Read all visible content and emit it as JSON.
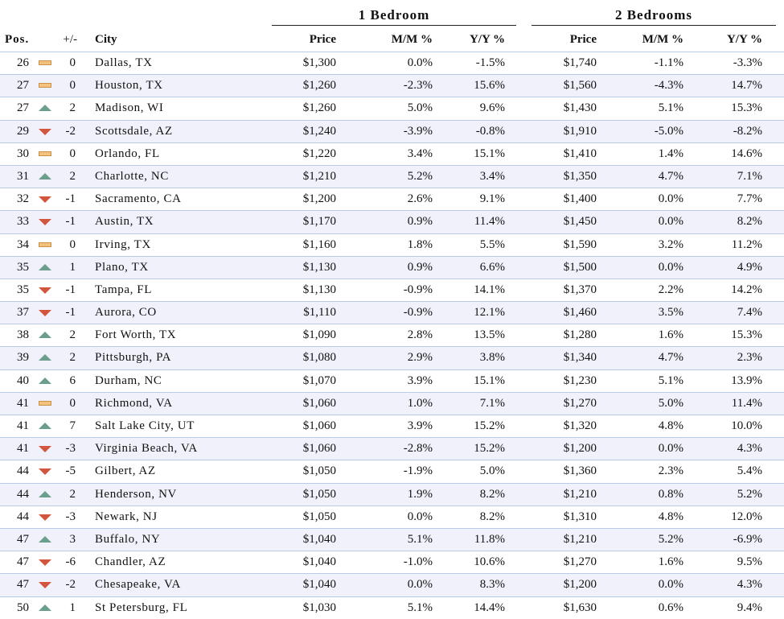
{
  "groups": {
    "one_bed": "1 Bedroom",
    "two_bed": "2 Bedrooms"
  },
  "headers": {
    "pos": "Pos.",
    "change": "+/-",
    "city": "City",
    "price": "Price",
    "mm": "M/M %",
    "yy": "Y/Y %"
  },
  "colors": {
    "up": "#6b9e8c",
    "down": "#d2553d",
    "flat": "#f3c27f",
    "row_alt": "#f1f1fb",
    "row_border": "#b9cbe8"
  },
  "chart_data": {
    "type": "table",
    "columns": [
      "Pos.",
      "+/-",
      "City",
      "1 Bedroom Price",
      "1 Bedroom M/M %",
      "1 Bedroom Y/Y %",
      "2 Bedrooms Price",
      "2 Bedrooms M/M %",
      "2 Bedrooms Y/Y %"
    ],
    "rows": [
      {
        "pos": "26",
        "trend": "flat",
        "change": "0",
        "city": "Dallas, TX",
        "p1": "$1,300",
        "m1": "0.0%",
        "y1": "-1.5%",
        "p2": "$1,740",
        "m2": "-1.1%",
        "y2": "-3.3%"
      },
      {
        "pos": "27",
        "trend": "flat",
        "change": "0",
        "city": "Houston, TX",
        "p1": "$1,260",
        "m1": "-2.3%",
        "y1": "15.6%",
        "p2": "$1,560",
        "m2": "-4.3%",
        "y2": "14.7%"
      },
      {
        "pos": "27",
        "trend": "up",
        "change": "2",
        "city": "Madison, WI",
        "p1": "$1,260",
        "m1": "5.0%",
        "y1": "9.6%",
        "p2": "$1,430",
        "m2": "5.1%",
        "y2": "15.3%"
      },
      {
        "pos": "29",
        "trend": "down",
        "change": "-2",
        "city": "Scottsdale, AZ",
        "p1": "$1,240",
        "m1": "-3.9%",
        "y1": "-0.8%",
        "p2": "$1,910",
        "m2": "-5.0%",
        "y2": "-8.2%"
      },
      {
        "pos": "30",
        "trend": "flat",
        "change": "0",
        "city": "Orlando, FL",
        "p1": "$1,220",
        "m1": "3.4%",
        "y1": "15.1%",
        "p2": "$1,410",
        "m2": "1.4%",
        "y2": "14.6%"
      },
      {
        "pos": "31",
        "trend": "up",
        "change": "2",
        "city": "Charlotte, NC",
        "p1": "$1,210",
        "m1": "5.2%",
        "y1": "3.4%",
        "p2": "$1,350",
        "m2": "4.7%",
        "y2": "7.1%"
      },
      {
        "pos": "32",
        "trend": "down",
        "change": "-1",
        "city": "Sacramento, CA",
        "p1": "$1,200",
        "m1": "2.6%",
        "y1": "9.1%",
        "p2": "$1,400",
        "m2": "0.0%",
        "y2": "7.7%"
      },
      {
        "pos": "33",
        "trend": "down",
        "change": "-1",
        "city": "Austin, TX",
        "p1": "$1,170",
        "m1": "0.9%",
        "y1": "11.4%",
        "p2": "$1,450",
        "m2": "0.0%",
        "y2": "8.2%"
      },
      {
        "pos": "34",
        "trend": "flat",
        "change": "0",
        "city": "Irving, TX",
        "p1": "$1,160",
        "m1": "1.8%",
        "y1": "5.5%",
        "p2": "$1,590",
        "m2": "3.2%",
        "y2": "11.2%"
      },
      {
        "pos": "35",
        "trend": "up",
        "change": "1",
        "city": "Plano, TX",
        "p1": "$1,130",
        "m1": "0.9%",
        "y1": "6.6%",
        "p2": "$1,500",
        "m2": "0.0%",
        "y2": "4.9%"
      },
      {
        "pos": "35",
        "trend": "down",
        "change": "-1",
        "city": "Tampa, FL",
        "p1": "$1,130",
        "m1": "-0.9%",
        "y1": "14.1%",
        "p2": "$1,370",
        "m2": "2.2%",
        "y2": "14.2%"
      },
      {
        "pos": "37",
        "trend": "down",
        "change": "-1",
        "city": "Aurora, CO",
        "p1": "$1,110",
        "m1": "-0.9%",
        "y1": "12.1%",
        "p2": "$1,460",
        "m2": "3.5%",
        "y2": "7.4%"
      },
      {
        "pos": "38",
        "trend": "up",
        "change": "2",
        "city": "Fort Worth, TX",
        "p1": "$1,090",
        "m1": "2.8%",
        "y1": "13.5%",
        "p2": "$1,280",
        "m2": "1.6%",
        "y2": "15.3%"
      },
      {
        "pos": "39",
        "trend": "up",
        "change": "2",
        "city": "Pittsburgh, PA",
        "p1": "$1,080",
        "m1": "2.9%",
        "y1": "3.8%",
        "p2": "$1,340",
        "m2": "4.7%",
        "y2": "2.3%"
      },
      {
        "pos": "40",
        "trend": "up",
        "change": "6",
        "city": "Durham, NC",
        "p1": "$1,070",
        "m1": "3.9%",
        "y1": "15.1%",
        "p2": "$1,230",
        "m2": "5.1%",
        "y2": "13.9%"
      },
      {
        "pos": "41",
        "trend": "flat",
        "change": "0",
        "city": "Richmond, VA",
        "p1": "$1,060",
        "m1": "1.0%",
        "y1": "7.1%",
        "p2": "$1,270",
        "m2": "5.0%",
        "y2": "11.4%"
      },
      {
        "pos": "41",
        "trend": "up",
        "change": "7",
        "city": "Salt Lake City, UT",
        "p1": "$1,060",
        "m1": "3.9%",
        "y1": "15.2%",
        "p2": "$1,320",
        "m2": "4.8%",
        "y2": "10.0%"
      },
      {
        "pos": "41",
        "trend": "down",
        "change": "-3",
        "city": "Virginia Beach, VA",
        "p1": "$1,060",
        "m1": "-2.8%",
        "y1": "15.2%",
        "p2": "$1,200",
        "m2": "0.0%",
        "y2": "4.3%"
      },
      {
        "pos": "44",
        "trend": "down",
        "change": "-5",
        "city": "Gilbert, AZ",
        "p1": "$1,050",
        "m1": "-1.9%",
        "y1": "5.0%",
        "p2": "$1,360",
        "m2": "2.3%",
        "y2": "5.4%"
      },
      {
        "pos": "44",
        "trend": "up",
        "change": "2",
        "city": "Henderson, NV",
        "p1": "$1,050",
        "m1": "1.9%",
        "y1": "8.2%",
        "p2": "$1,210",
        "m2": "0.8%",
        "y2": "5.2%"
      },
      {
        "pos": "44",
        "trend": "down",
        "change": "-3",
        "city": "Newark, NJ",
        "p1": "$1,050",
        "m1": "0.0%",
        "y1": "8.2%",
        "p2": "$1,310",
        "m2": "4.8%",
        "y2": "12.0%"
      },
      {
        "pos": "47",
        "trend": "up",
        "change": "3",
        "city": "Buffalo, NY",
        "p1": "$1,040",
        "m1": "5.1%",
        "y1": "11.8%",
        "p2": "$1,210",
        "m2": "5.2%",
        "y2": "-6.9%"
      },
      {
        "pos": "47",
        "trend": "down",
        "change": "-6",
        "city": "Chandler, AZ",
        "p1": "$1,040",
        "m1": "-1.0%",
        "y1": "10.6%",
        "p2": "$1,270",
        "m2": "1.6%",
        "y2": "9.5%"
      },
      {
        "pos": "47",
        "trend": "down",
        "change": "-2",
        "city": "Chesapeake, VA",
        "p1": "$1,040",
        "m1": "0.0%",
        "y1": "8.3%",
        "p2": "$1,200",
        "m2": "0.0%",
        "y2": "4.3%"
      },
      {
        "pos": "50",
        "trend": "up",
        "change": "1",
        "city": "St Petersburg, FL",
        "p1": "$1,030",
        "m1": "5.1%",
        "y1": "14.4%",
        "p2": "$1,630",
        "m2": "0.6%",
        "y2": "9.4%"
      }
    ]
  }
}
